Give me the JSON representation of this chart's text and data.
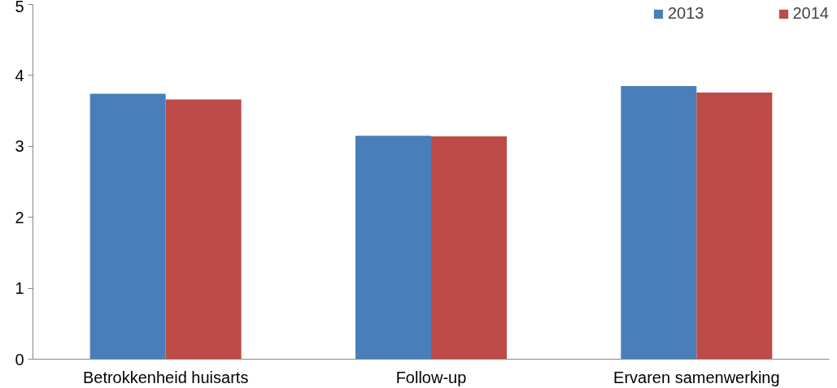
{
  "chart_data": {
    "type": "bar",
    "categories": [
      "Betrokkenheid huisarts",
      "Follow-up",
      "Ervaren samenwerking"
    ],
    "series": [
      {
        "name": "2013",
        "color": "#4a7ebb",
        "values": [
          3.74,
          3.15,
          3.85
        ]
      },
      {
        "name": "2014",
        "color": "#be4b48",
        "values": [
          3.66,
          3.14,
          3.76
        ]
      }
    ],
    "ylim": [
      0,
      5
    ],
    "yticks": [
      0,
      1,
      2,
      3,
      4,
      5
    ],
    "grid": false,
    "legend": "top right"
  }
}
